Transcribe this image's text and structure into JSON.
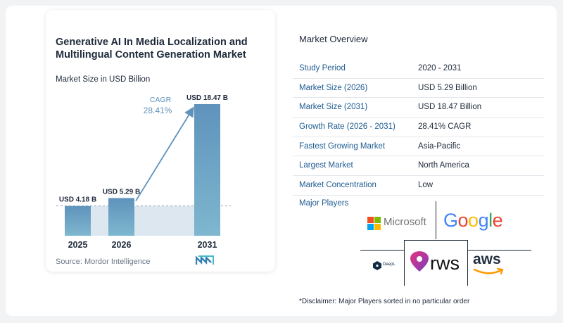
{
  "chart": {
    "title": "Generative AI In Media Localization and Multilingual Content Generation Market",
    "subtitle": "Market Size in USD Billion",
    "source": "Source:  Mordor Intelligence",
    "cagr_label": "CAGR",
    "cagr_value": "28.41%"
  },
  "chart_data": {
    "type": "bar",
    "categories": [
      "2025",
      "2026",
      "2031"
    ],
    "values": [
      4.18,
      5.29,
      18.47
    ],
    "value_labels": [
      "USD 4.18 B",
      "USD 5.29 B",
      "USD 18.47 B"
    ],
    "ylabel": "Market Size in USD Billion",
    "ylim": [
      0,
      18.47
    ],
    "colors": {
      "bar_top": "#5f93bc",
      "bar_bottom": "#7eb7cf",
      "area": "#dde7f0",
      "arrow": "#5f93bc"
    }
  },
  "overview": {
    "title": "Market Overview",
    "rows": [
      {
        "label": "Study Period",
        "value": "2020 - 2031"
      },
      {
        "label": "Market Size (2026)",
        "value": "USD 5.29 Billion"
      },
      {
        "label": "Market Size (2031)",
        "value": "USD 18.47 Billion"
      },
      {
        "label": "Growth Rate (2026 - 2031)",
        "value": "28.41% CAGR"
      },
      {
        "label": "Fastest Growing Market",
        "value": "Asia-Pacific"
      },
      {
        "label": "Largest Market",
        "value": "North America"
      },
      {
        "label": "Market Concentration",
        "value": "Low"
      }
    ]
  },
  "players": {
    "label": "Major Players",
    "microsoft": "Microsoft",
    "google": "Google",
    "deepl": "DeepL",
    "rws": "rws",
    "aws": "aws"
  },
  "disclaimer": "*Disclaimer: Major Players sorted in no particular order"
}
